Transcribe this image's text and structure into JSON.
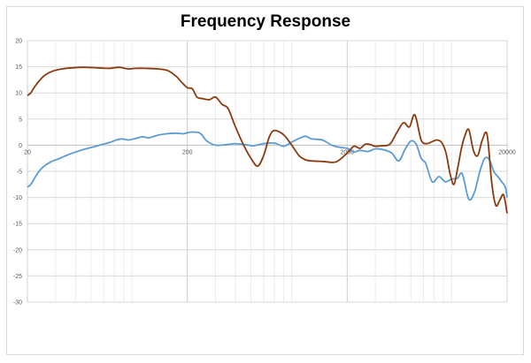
{
  "chart_data": {
    "type": "line",
    "title": "Frequency Response",
    "xlabel": "",
    "ylabel": "",
    "x_scale": "log",
    "xlim": [
      20,
      20000
    ],
    "ylim": [
      -30,
      20
    ],
    "grid": true,
    "legend": "none",
    "x_tick_labels": [
      "20",
      "200",
      "2000",
      "20000"
    ],
    "x_ticks": [
      20,
      200,
      2000,
      20000
    ],
    "y_ticks": [
      20,
      15,
      10,
      5,
      0,
      -5,
      -10,
      -15,
      -20,
      -25,
      -30
    ],
    "series": [
      {
        "color": "#5b9bd5",
        "x": [
          20,
          21,
          23,
          25,
          28,
          32,
          36,
          40,
          45,
          52,
          58,
          65,
          72,
          78,
          86,
          95,
          105,
          115,
          130,
          150,
          170,
          190,
          210,
          240,
          265,
          300,
          350,
          400,
          460,
          520,
          600,
          700,
          800,
          900,
          1000,
          1100,
          1200,
          1400,
          1600,
          1800,
          2000,
          2200,
          2400,
          2700,
          3000,
          3400,
          3800,
          4200,
          4600,
          5000,
          5400,
          5800,
          6200,
          6800,
          7500,
          8200,
          9000,
          9800,
          10500,
          11500,
          12500,
          13500,
          14500,
          15500,
          16500,
          17500,
          18500,
          19500,
          20000
        ],
        "y": [
          -8,
          -7.5,
          -5.5,
          -4.2,
          -3.2,
          -2.5,
          -1.8,
          -1.3,
          -0.8,
          -0.3,
          0.1,
          0.5,
          1.0,
          1.2,
          1.0,
          1.3,
          1.6,
          1.4,
          1.9,
          2.2,
          2.3,
          2.2,
          2.5,
          2.3,
          0.8,
          0,
          0.1,
          0.3,
          0.1,
          -0.1,
          0.3,
          0.4,
          -0.2,
          0.6,
          1.3,
          1.7,
          1.2,
          1.0,
          0,
          -0.4,
          -0.6,
          -1.3,
          -1.0,
          -1.2,
          -0.7,
          -0.9,
          -1.5,
          -3.0,
          -0.8,
          0.8,
          0.2,
          -2.5,
          -3.5,
          -7.0,
          -6.0,
          -7.0,
          -6.5,
          -6.3,
          -5.5,
          -10.3,
          -9.0,
          -5.0,
          -2.5,
          -2.8,
          -5.0,
          -6.0,
          -7.0,
          -8.0,
          -10.0
        ]
      },
      {
        "color": "#8b3a0e",
        "x": [
          20,
          21,
          22,
          24,
          26,
          29,
          33,
          38,
          45,
          55,
          65,
          75,
          85,
          95,
          110,
          130,
          150,
          170,
          185,
          200,
          215,
          230,
          250,
          275,
          300,
          330,
          360,
          400,
          450,
          500,
          550,
          600,
          650,
          700,
          800,
          900,
          1000,
          1100,
          1200,
          1400,
          1700,
          2000,
          2200,
          2400,
          2600,
          2800,
          3000,
          3300,
          3700,
          4100,
          4500,
          4900,
          5300,
          5800,
          6300,
          6800,
          7300,
          7800,
          8300,
          8800,
          9300,
          9800,
          10300,
          10800,
          11500,
          12300,
          13100,
          14000,
          15000,
          16000,
          17000,
          18000,
          19000,
          20000
        ],
        "y": [
          9.5,
          10.0,
          11.0,
          12.5,
          13.5,
          14.2,
          14.6,
          14.8,
          14.9,
          14.8,
          14.7,
          14.9,
          14.6,
          14.7,
          14.7,
          14.6,
          14.3,
          13.2,
          12.0,
          11.0,
          10.8,
          9.2,
          8.9,
          8.7,
          9.2,
          7.8,
          7.0,
          3.5,
          0,
          -2.5,
          -4.0,
          -2.0,
          1.5,
          2.8,
          2.0,
          0,
          -2.0,
          -2.8,
          -3.0,
          -3.1,
          -3.2,
          -1.5,
          -0.2,
          -0.6,
          0.2,
          0.1,
          -0.2,
          -0.1,
          0.2,
          2.5,
          4.3,
          3.5,
          5.8,
          1.0,
          0.3,
          0.7,
          1.0,
          0.5,
          -1.5,
          -5.5,
          -7.5,
          -4.5,
          -1.0,
          1.5,
          3.0,
          -1.0,
          -2.0,
          1.0,
          2.0,
          -7.0,
          -11.5,
          -10.5,
          -9.5,
          -13.0
        ]
      }
    ]
  }
}
